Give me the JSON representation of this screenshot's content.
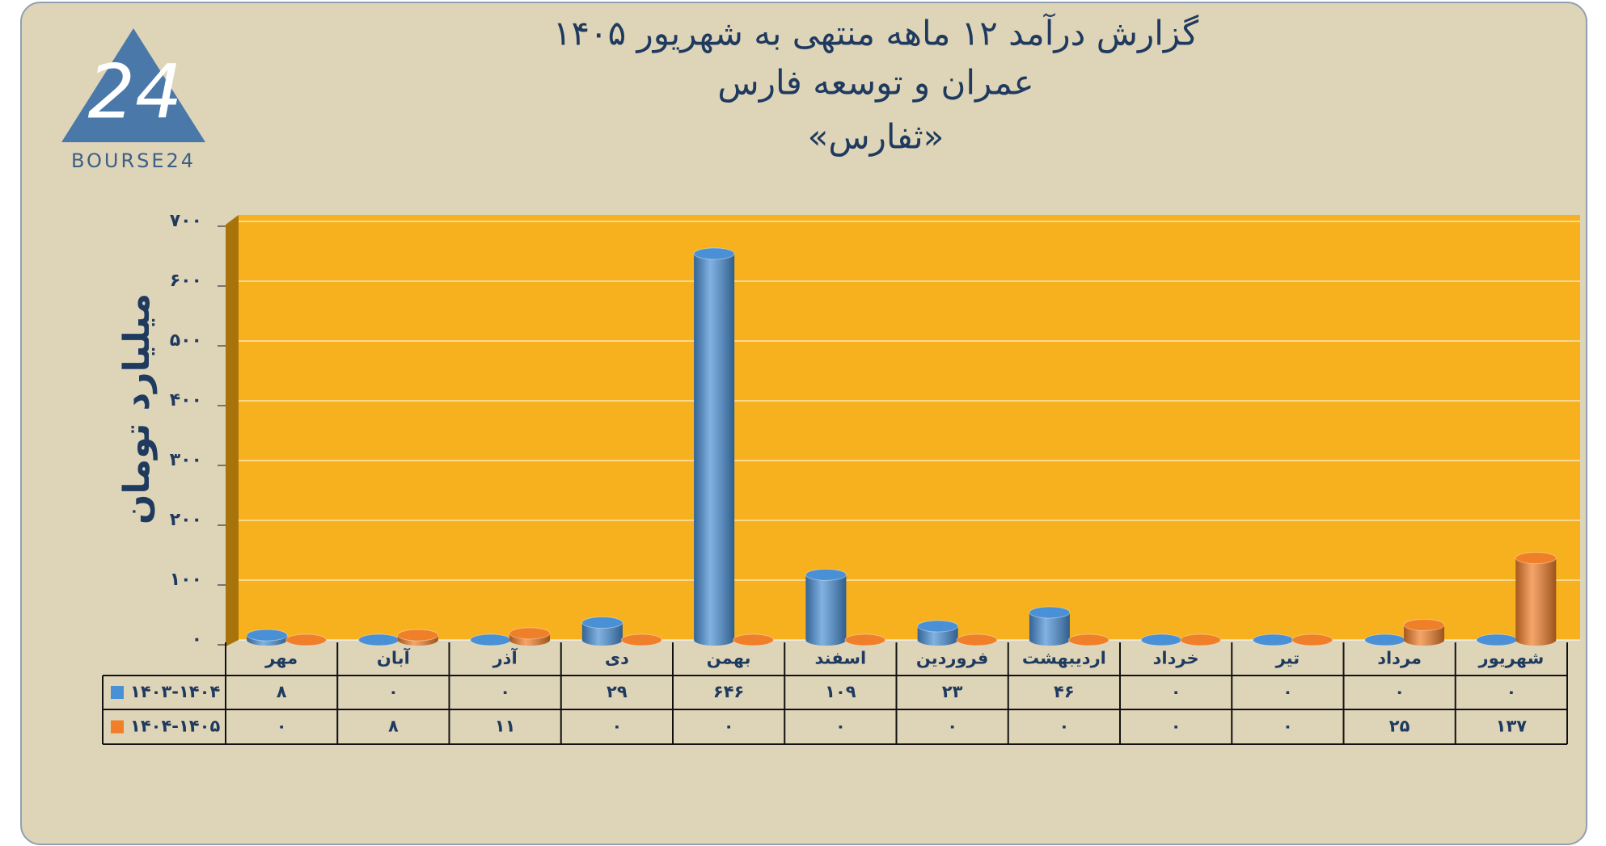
{
  "logo": {
    "mark": "24",
    "text": "BOURSE24"
  },
  "chart_data": {
    "type": "bar",
    "title": [
      "گزارش  درآمد ۱۲ ماهه منتهی به شهریور ۱۴۰۵",
      "عمران و توسعه فارس",
      "«ثفارس»"
    ],
    "y_label": "میلیارد تومان",
    "categories": [
      "مهر",
      "آبان",
      "آذر",
      "دی",
      "بهمن",
      "اسفند",
      "فروردین",
      "اردیبهشت",
      "خرداد",
      "تیر",
      "مرداد",
      "شهریور"
    ],
    "series": [
      {
        "name": "۱۴۰۳-۱۴۰۴",
        "color": "#4a90d6",
        "values": [
          8,
          0,
          0,
          29,
          646,
          109,
          23,
          46,
          0,
          0,
          0,
          0
        ],
        "value_labels": [
          "۸",
          "۰",
          "۰",
          "۲۹",
          "۶۴۶",
          "۱۰۹",
          "۲۳",
          "۴۶",
          "۰",
          "۰",
          "۰",
          "۰"
        ]
      },
      {
        "name": "۱۴۰۴-۱۴۰۵",
        "color": "#f07f2a",
        "values": [
          0,
          8,
          11,
          0,
          0,
          0,
          0,
          0,
          0,
          0,
          25,
          137
        ],
        "value_labels": [
          "۰",
          "۸",
          "۱۱",
          "۰",
          "۰",
          "۰",
          "۰",
          "۰",
          "۰",
          "۰",
          "۲۵",
          "۱۳۷"
        ]
      }
    ],
    "ylim": [
      0,
      700
    ],
    "yticks": [
      {
        "value": 0,
        "label": "۰"
      },
      {
        "value": 100,
        "label": "۱۰۰"
      },
      {
        "value": 200,
        "label": "۲۰۰"
      },
      {
        "value": 300,
        "label": "۳۰۰"
      },
      {
        "value": 400,
        "label": "۴۰۰"
      },
      {
        "value": 500,
        "label": "۵۰۰"
      },
      {
        "value": 600,
        "label": "۶۰۰"
      },
      {
        "value": 700,
        "label": "۷۰۰"
      }
    ],
    "grid": true,
    "plot_color": "#f7b11e"
  }
}
